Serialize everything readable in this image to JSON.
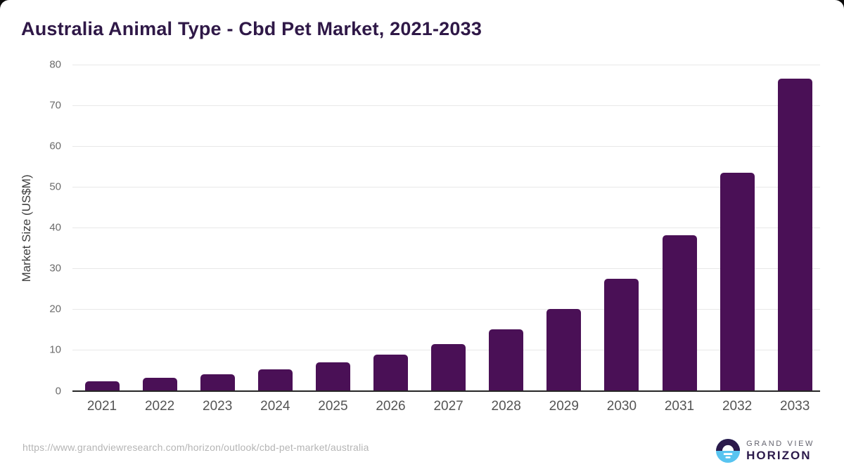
{
  "title": "Australia Animal Type - Cbd Pet Market, 2021-2033",
  "chart_data": {
    "type": "bar",
    "title": "Australia Animal Type - Cbd Pet Market, 2021-2033",
    "categories": [
      "2021",
      "2022",
      "2023",
      "2024",
      "2025",
      "2026",
      "2027",
      "2028",
      "2029",
      "2030",
      "2031",
      "2032",
      "2033"
    ],
    "values": [
      2.5,
      3.2,
      4.1,
      5.4,
      7.0,
      9.0,
      11.5,
      15.2,
      20.1,
      27.6,
      38.2,
      53.6,
      76.8
    ],
    "xlabel": "",
    "ylabel": "Market Size (US$M)",
    "ylim": [
      0,
      80
    ],
    "yticks": [
      0,
      10,
      20,
      30,
      40,
      50,
      60,
      70,
      80
    ],
    "grid": true,
    "legend": false,
    "bar_color": "#4A1056"
  },
  "colors": {
    "bar": "#4A1056",
    "title_text": "#2F1847",
    "gridline": "#E8E8E8",
    "axis_baseline": "#262626",
    "y_tick_label": "#6B6B6B",
    "x_tick_label": "#545454",
    "url_text": "#B5B5B5",
    "logo_dark_purple": "#2C1A4B",
    "logo_light_blue": "#58C4F0",
    "logo_gray_text": "#63636E"
  },
  "footer": {
    "source_url": "https://www.grandviewresearch.com/horizon/outlook/cbd-pet-market/australia",
    "logo": {
      "top_text": "GRAND VIEW",
      "bottom_text": "HORIZON"
    }
  }
}
